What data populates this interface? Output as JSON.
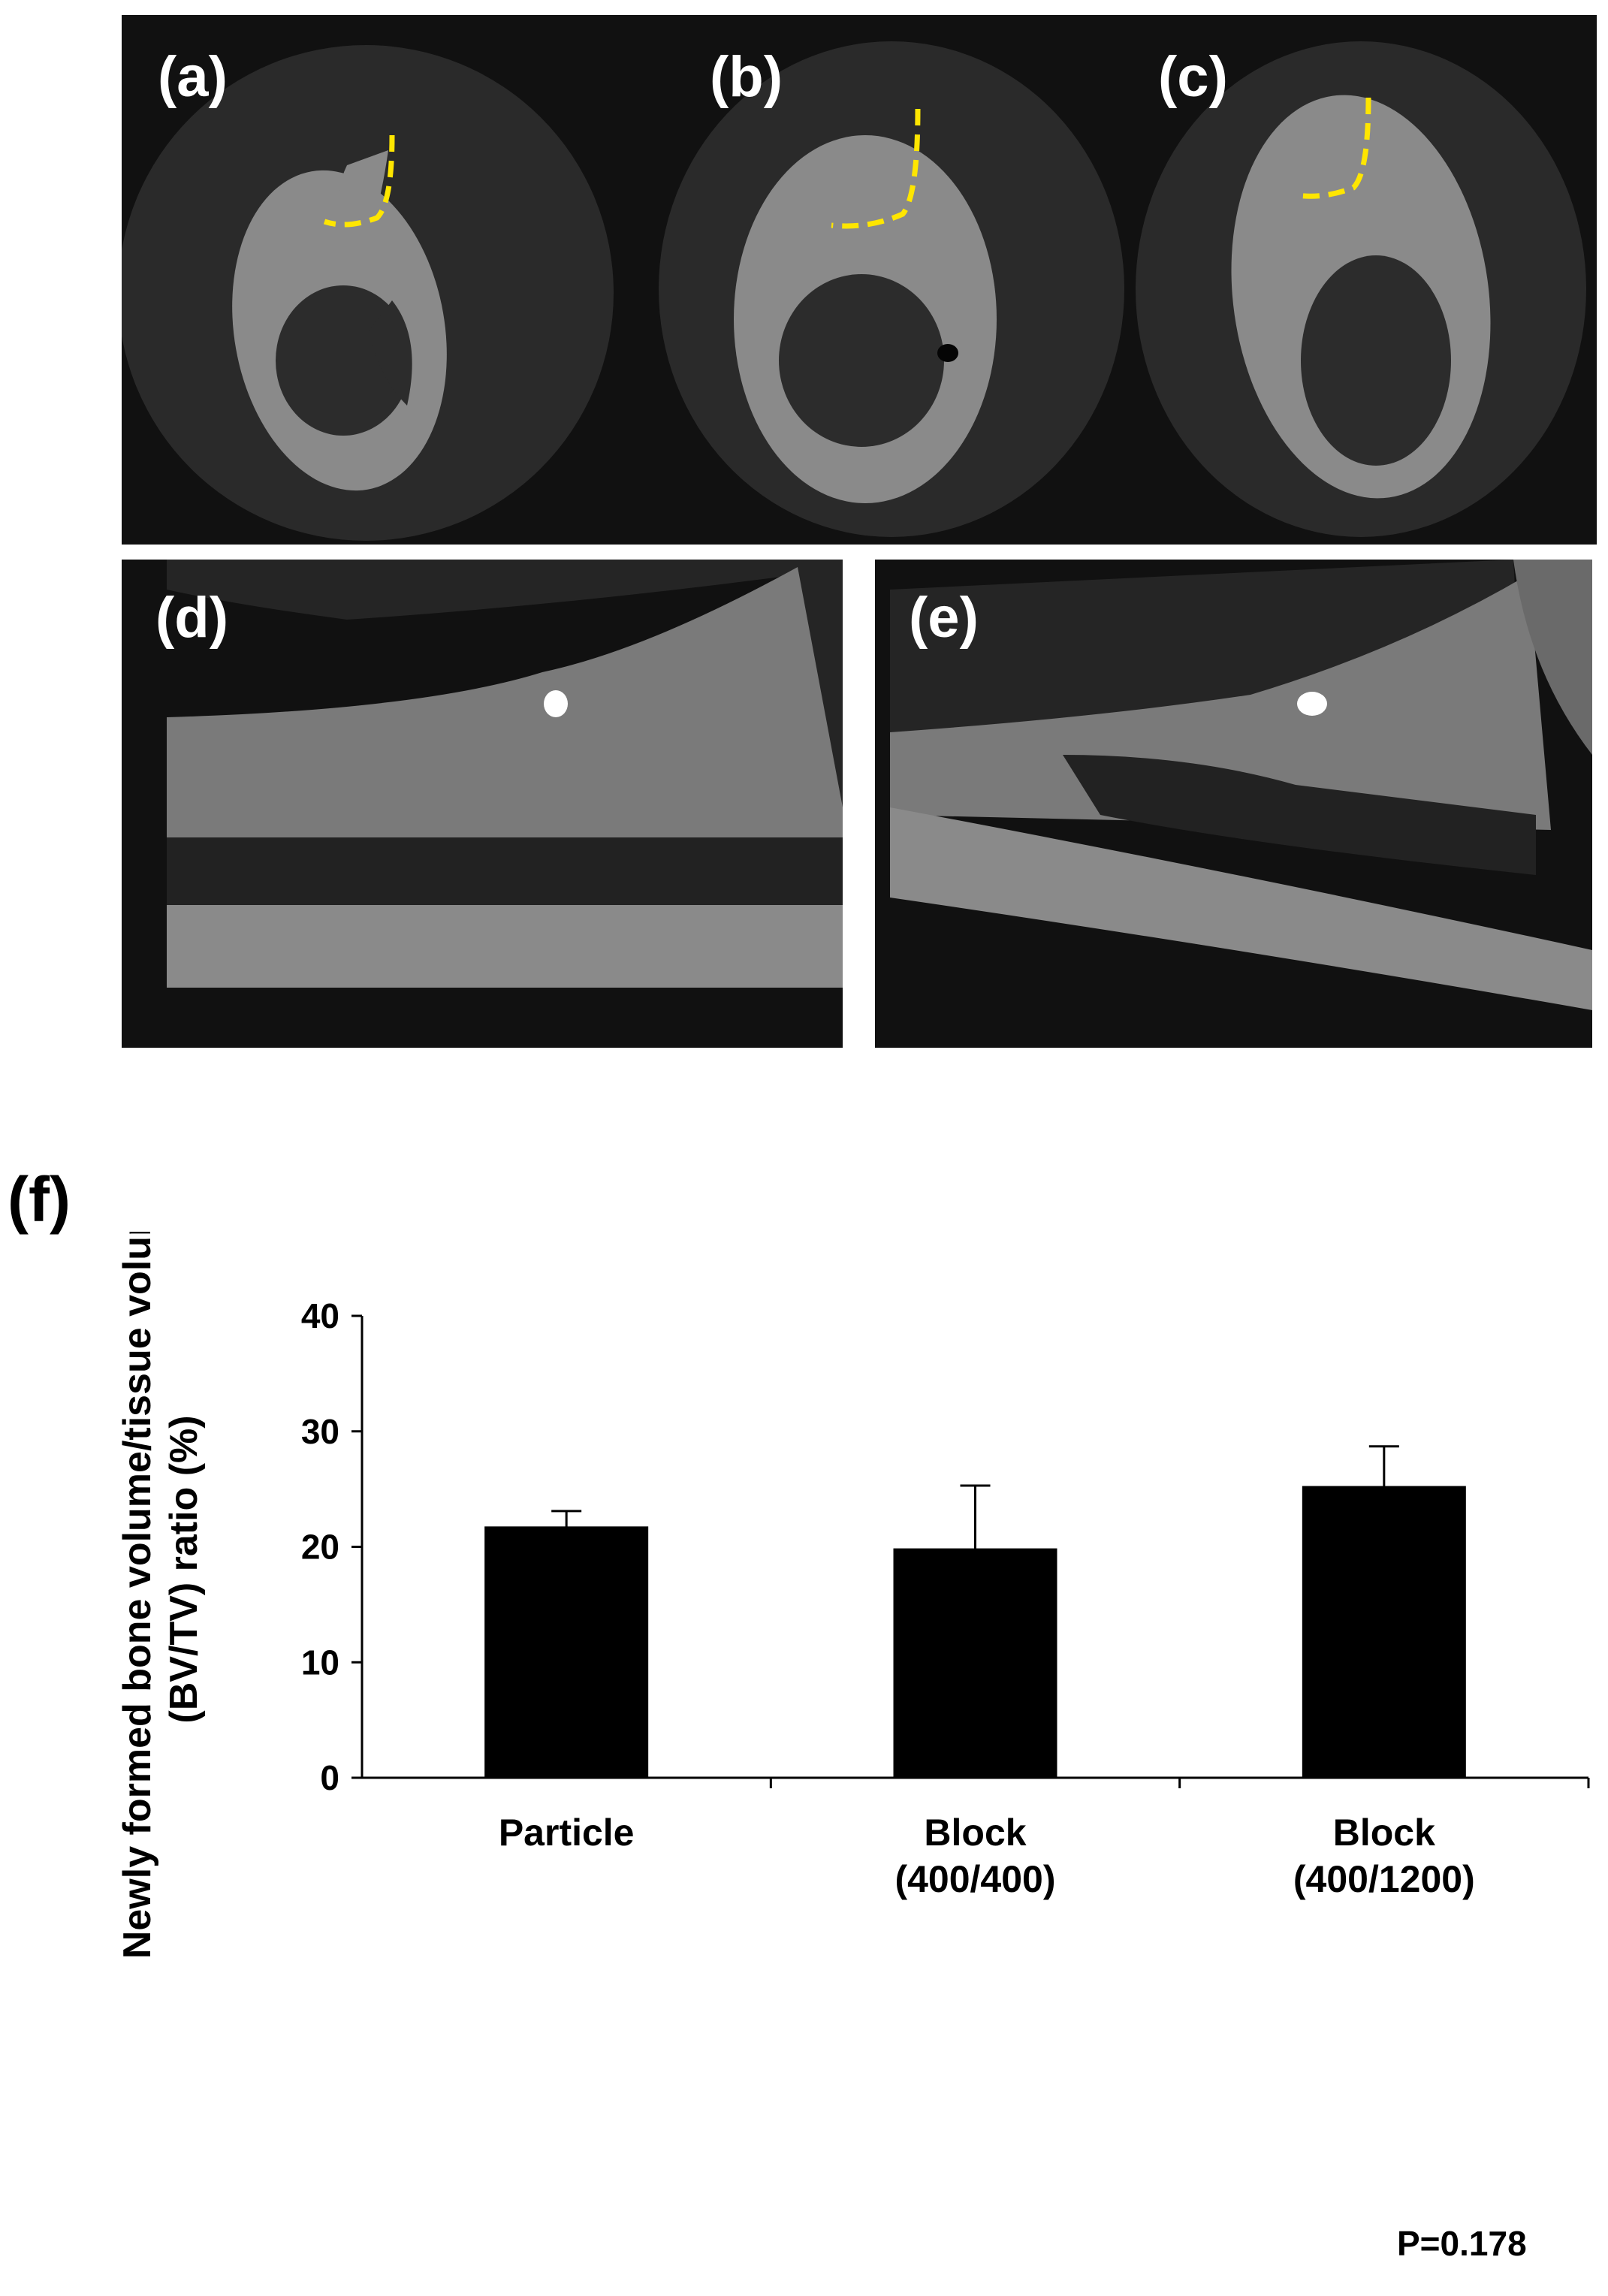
{
  "panels": [
    {
      "label": "(a)"
    },
    {
      "label": "(b)"
    },
    {
      "label": "(c)"
    },
    {
      "label": "(d)"
    },
    {
      "label": "(e)"
    }
  ],
  "figure": {
    "panel_f_label": "(f)",
    "p_value": "P=0.178"
  },
  "chart_data": {
    "type": "bar",
    "categories": [
      [
        "Particle"
      ],
      [
        "Block",
        "(400/400)"
      ],
      [
        "Block",
        "(400/1200)"
      ]
    ],
    "series": [
      {
        "values": [
          21.7,
          19.8,
          25.2
        ],
        "error": [
          1.4,
          5.5,
          3.5
        ],
        "color": "#000000"
      }
    ],
    "ylabel_lines": [
      "Newly formed bone volume/tissue volume",
      "(BV/TV) ratio (%)"
    ],
    "ylim": [
      0,
      40
    ],
    "yticks": [
      0,
      10,
      20,
      30,
      40
    ],
    "grid": false,
    "legend": "none"
  }
}
